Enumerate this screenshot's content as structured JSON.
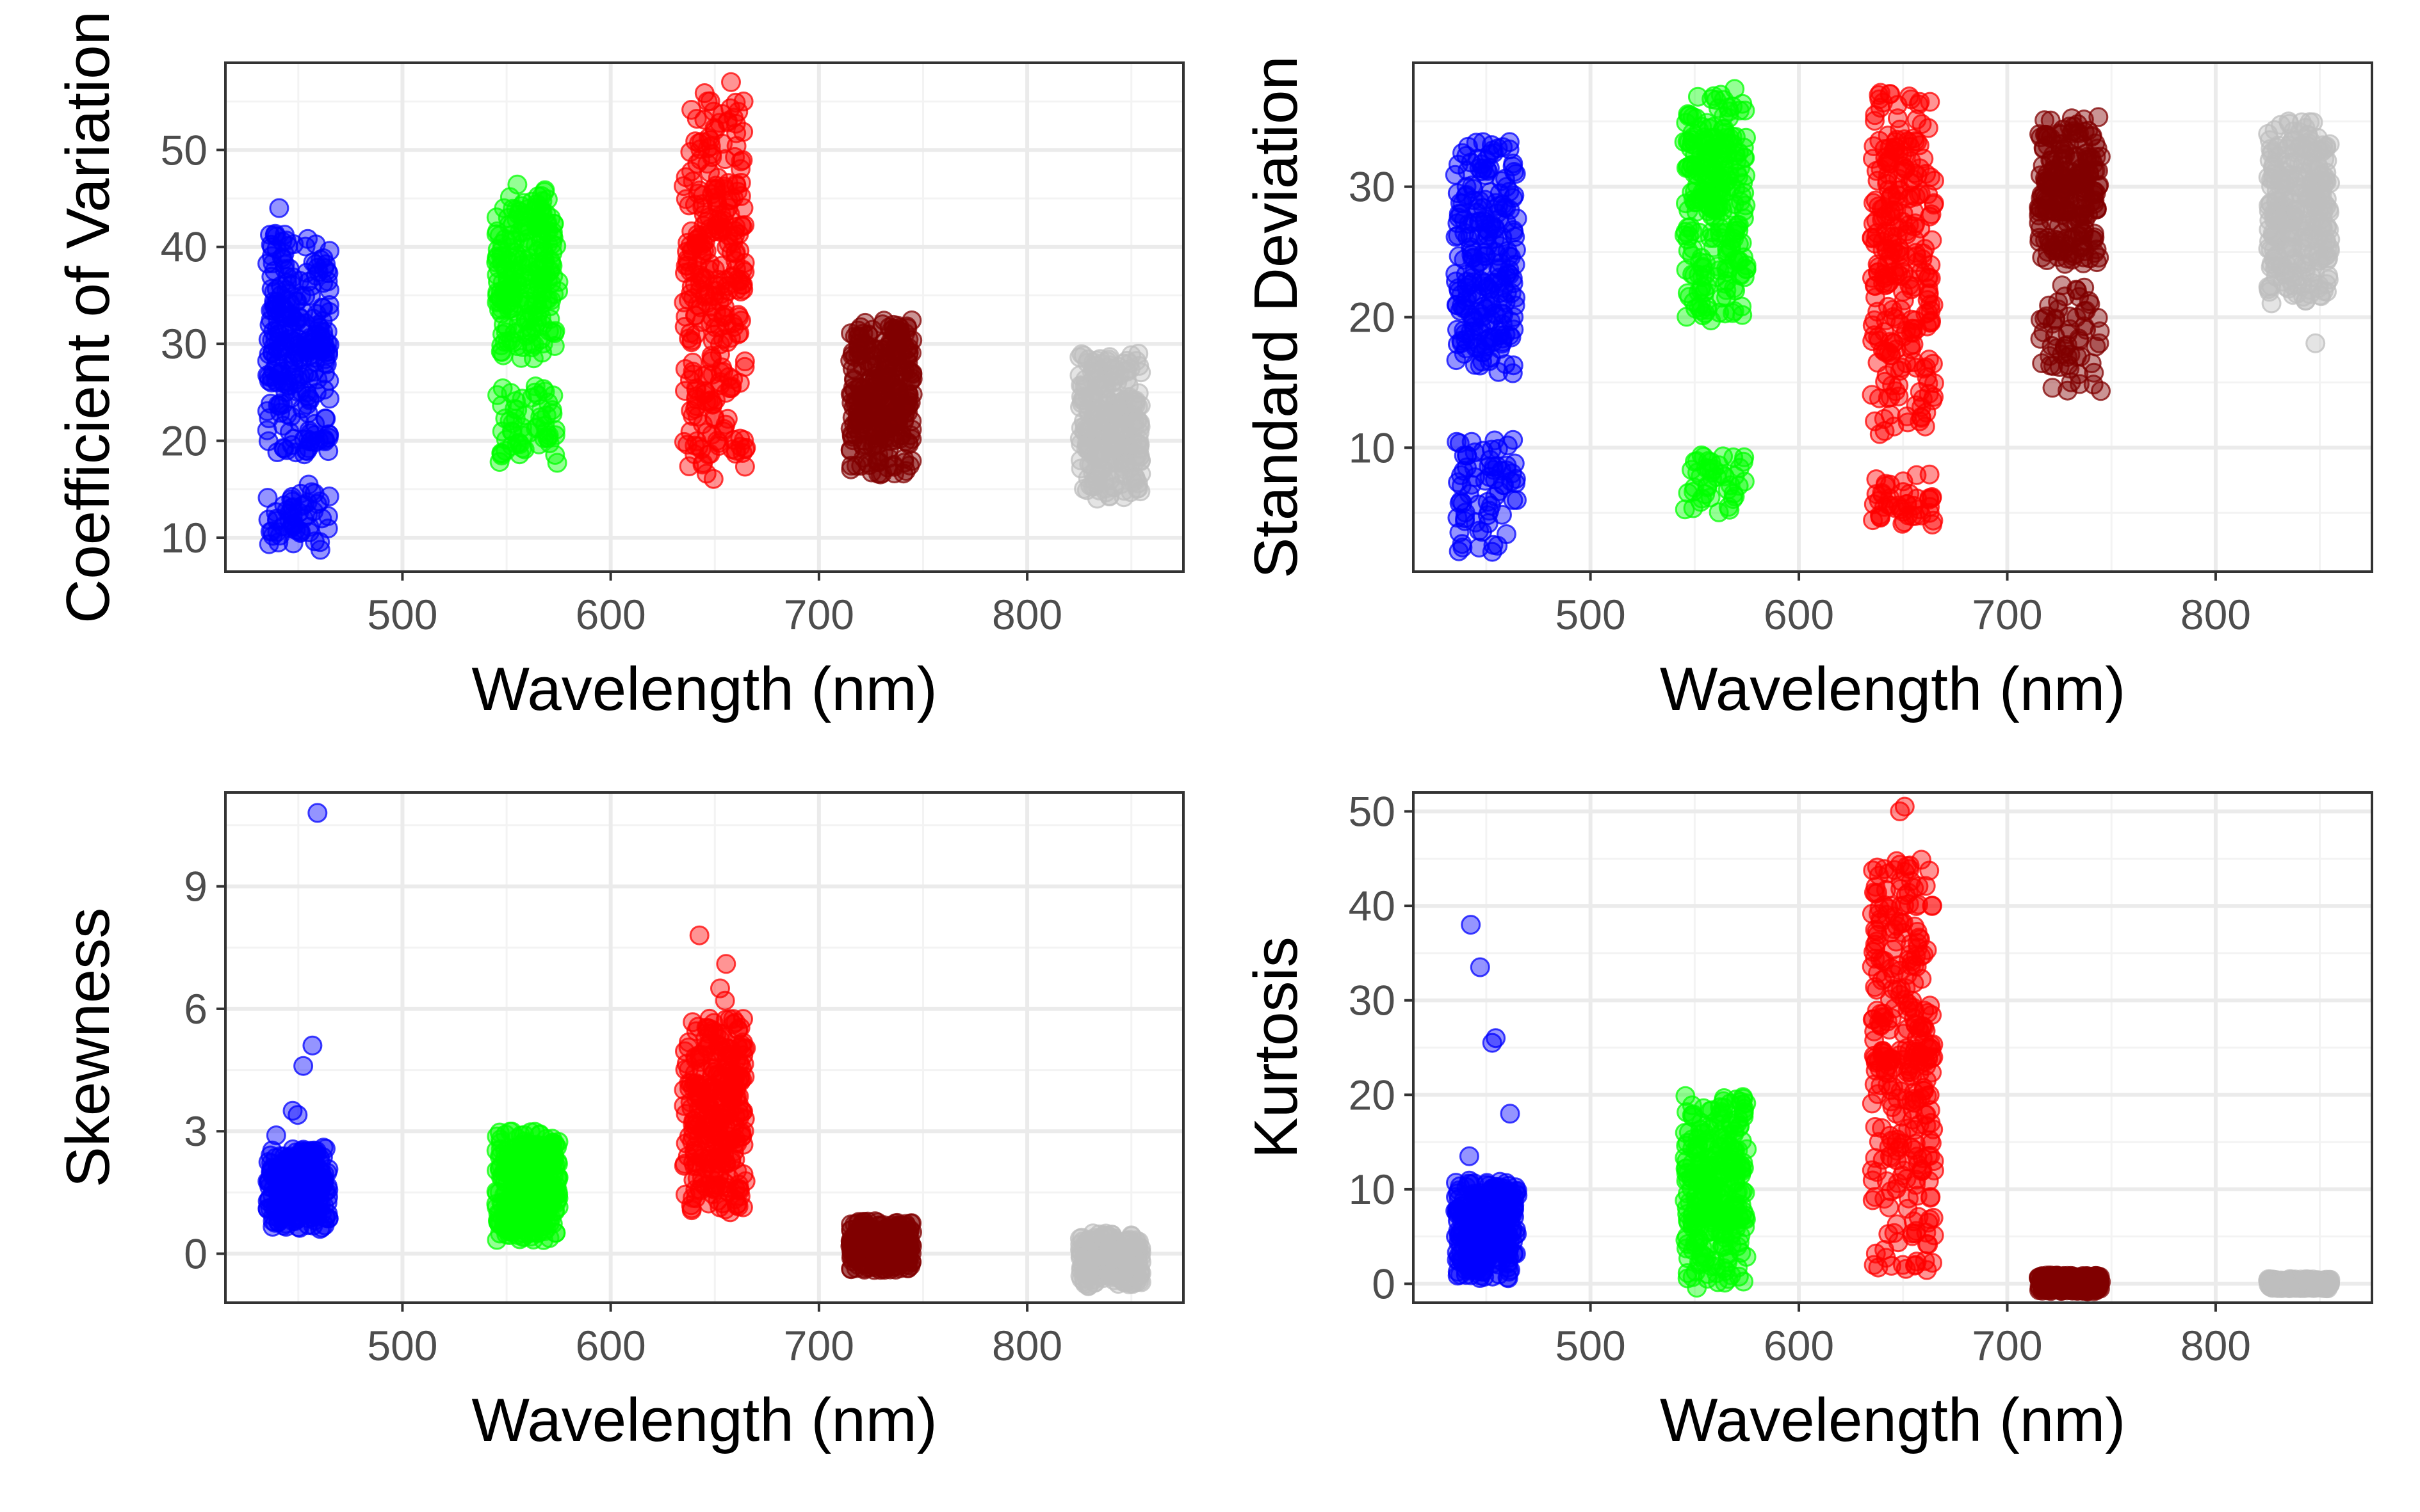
{
  "chart_data": [
    {
      "type": "scatter",
      "xlabel": "Wavelength (nm)",
      "ylabel": "Coefficient of Variation",
      "xlim": [
        415,
        875
      ],
      "ylim": [
        6.5,
        59
      ],
      "xticks": [
        500,
        600,
        700,
        800
      ],
      "yticks": [
        10,
        20,
        30,
        40,
        50
      ],
      "grid": true,
      "legend": "none",
      "groups": [
        {
          "x": 450,
          "color": "#0000FF",
          "clusters": [
            {
              "min": 18.5,
              "max": 41.5,
              "n": 260
            },
            {
              "min": 8.5,
              "max": 15.5,
              "n": 55
            }
          ],
          "outliers": [
            44
          ]
        },
        {
          "x": 560,
          "color": "#00FF00",
          "clusters": [
            {
              "min": 28.5,
              "max": 46.5,
              "n": 230
            },
            {
              "min": 17.5,
              "max": 26,
              "n": 60
            }
          ],
          "outliers": []
        },
        {
          "x": 650,
          "color": "#FF0000",
          "clusters": [
            {
              "min": 24,
              "max": 56,
              "n": 260
            },
            {
              "min": 16,
              "max": 24,
              "n": 45
            }
          ],
          "outliers": [
            57
          ]
        },
        {
          "x": 730,
          "color": "#800000",
          "clusters": [
            {
              "min": 16.5,
              "max": 32.5,
              "n": 300
            }
          ],
          "outliers": []
        },
        {
          "x": 840,
          "color": "#BEBEBE",
          "clusters": [
            {
              "min": 14,
              "max": 29,
              "n": 300
            }
          ],
          "outliers": []
        }
      ]
    },
    {
      "type": "scatter",
      "xlabel": "Wavelength (nm)",
      "ylabel": "Standard Deviation",
      "xlim": [
        415,
        875
      ],
      "ylim": [
        0.5,
        39.5
      ],
      "xticks": [
        500,
        600,
        700,
        800
      ],
      "yticks": [
        10,
        20,
        30
      ],
      "grid": true,
      "legend": "none",
      "groups": [
        {
          "x": 450,
          "color": "#0000FF",
          "clusters": [
            {
              "min": 15,
              "max": 33.5,
              "n": 230
            },
            {
              "min": 2,
              "max": 11,
              "n": 70
            }
          ],
          "outliers": []
        },
        {
          "x": 560,
          "color": "#00FF00",
          "clusters": [
            {
              "min": 19.5,
              "max": 37.5,
              "n": 260
            },
            {
              "min": 5,
              "max": 9.5,
              "n": 45
            }
          ],
          "outliers": []
        },
        {
          "x": 650,
          "color": "#FF0000",
          "clusters": [
            {
              "min": 11,
              "max": 37.5,
              "n": 270
            },
            {
              "min": 4,
              "max": 8,
              "n": 45
            }
          ],
          "outliers": []
        },
        {
          "x": 730,
          "color": "#800000",
          "clusters": [
            {
              "min": 24,
              "max": 35.5,
              "n": 230
            },
            {
              "min": 14,
              "max": 22.5,
              "n": 60
            }
          ],
          "outliers": []
        },
        {
          "x": 840,
          "color": "#BEBEBE",
          "clusters": [
            {
              "min": 21,
              "max": 35,
              "n": 300
            }
          ],
          "outliers": [
            18
          ]
        }
      ]
    },
    {
      "type": "scatter",
      "xlabel": "Wavelength (nm)",
      "ylabel": "Skewness",
      "xlim": [
        415,
        875
      ],
      "ylim": [
        -1.2,
        11.3
      ],
      "xticks": [
        500,
        600,
        700,
        800
      ],
      "yticks": [
        0,
        3,
        6,
        9
      ],
      "grid": true,
      "legend": "none",
      "groups": [
        {
          "x": 450,
          "color": "#0000FF",
          "clusters": [
            {
              "min": 0.6,
              "max": 2.6,
              "n": 280
            }
          ],
          "outliers": [
            10.8,
            5.1,
            4.6,
            3.5,
            3.4,
            2.9
          ]
        },
        {
          "x": 560,
          "color": "#00FF00",
          "clusters": [
            {
              "min": 0.3,
              "max": 3.0,
              "n": 300
            }
          ],
          "outliers": []
        },
        {
          "x": 650,
          "color": "#FF0000",
          "clusters": [
            {
              "min": 1.0,
              "max": 5.8,
              "n": 300
            }
          ],
          "outliers": [
            7.8,
            7.1,
            6.5,
            6.2
          ]
        },
        {
          "x": 730,
          "color": "#800000",
          "clusters": [
            {
              "min": -0.4,
              "max": 0.8,
              "n": 300
            }
          ],
          "outliers": []
        },
        {
          "x": 840,
          "color": "#BEBEBE",
          "clusters": [
            {
              "min": -0.8,
              "max": 0.5,
              "n": 300
            }
          ],
          "outliers": []
        }
      ]
    },
    {
      "type": "scatter",
      "xlabel": "Wavelength (nm)",
      "ylabel": "Kurtosis",
      "xlim": [
        415,
        875
      ],
      "ylim": [
        -2,
        52
      ],
      "xticks": [
        500,
        600,
        700,
        800
      ],
      "yticks": [
        0,
        10,
        20,
        30,
        40,
        50
      ],
      "grid": true,
      "legend": "none",
      "groups": [
        {
          "x": 450,
          "color": "#0000FF",
          "clusters": [
            {
              "min": 0.5,
              "max": 11,
              "n": 280
            }
          ],
          "outliers": [
            38,
            33.5,
            26,
            25.5,
            18,
            13.5
          ]
        },
        {
          "x": 560,
          "color": "#00FF00",
          "clusters": [
            {
              "min": -0.5,
              "max": 20,
              "n": 300
            }
          ],
          "outliers": []
        },
        {
          "x": 650,
          "color": "#FF0000",
          "clusters": [
            {
              "min": 1,
              "max": 45,
              "n": 320
            }
          ],
          "outliers": [
            50.5,
            50
          ]
        },
        {
          "x": 730,
          "color": "#800000",
          "clusters": [
            {
              "min": -0.8,
              "max": 0.9,
              "n": 300
            }
          ],
          "outliers": []
        },
        {
          "x": 840,
          "color": "#BEBEBE",
          "clusters": [
            {
              "min": -0.5,
              "max": 0.5,
              "n": 300
            }
          ],
          "outliers": []
        }
      ]
    }
  ]
}
